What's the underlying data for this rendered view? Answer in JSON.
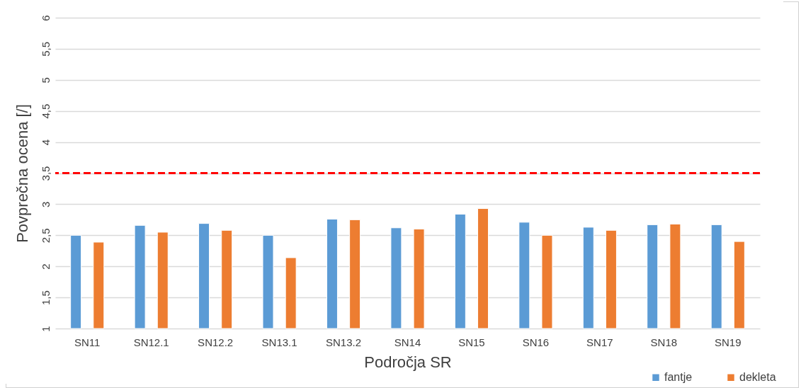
{
  "chart_data": {
    "type": "bar",
    "xlabel": "Področja SR",
    "ylabel": "Povprečna ocena [/]",
    "categories": [
      "SN11",
      "SN12.1",
      "SN12.2",
      "SN13.1",
      "SN13.2",
      "SN14",
      "SN15",
      "SN16",
      "SN17",
      "SN18",
      "SN19"
    ],
    "series": [
      {
        "name": "fantje",
        "color": "#5b9bd5",
        "values": [
          2.5,
          2.66,
          2.69,
          2.5,
          2.76,
          2.62,
          2.84,
          2.71,
          2.63,
          2.67,
          2.67
        ]
      },
      {
        "name": "dekleta",
        "color": "#ed7d31",
        "values": [
          2.39,
          2.55,
          2.58,
          2.14,
          2.75,
          2.6,
          2.93,
          2.5,
          2.58,
          2.68,
          2.4
        ]
      }
    ],
    "ylim": [
      1,
      6
    ],
    "yticks": [
      1,
      {
        "value": 1.5,
        "label": "1,5"
      },
      2,
      {
        "value": 2.5,
        "label": "2,5"
      },
      3,
      {
        "value": 3.5,
        "label": "3,5"
      },
      4,
      {
        "value": 4.5,
        "label": "4,5"
      },
      5,
      {
        "value": 5.5,
        "label": "5,5"
      },
      6
    ],
    "ref_lines": [
      {
        "axis": "y",
        "value": 3.5,
        "color": "#ff0000",
        "line_style": "dashed"
      }
    ],
    "grid": "y",
    "legend": "bottom right"
  }
}
